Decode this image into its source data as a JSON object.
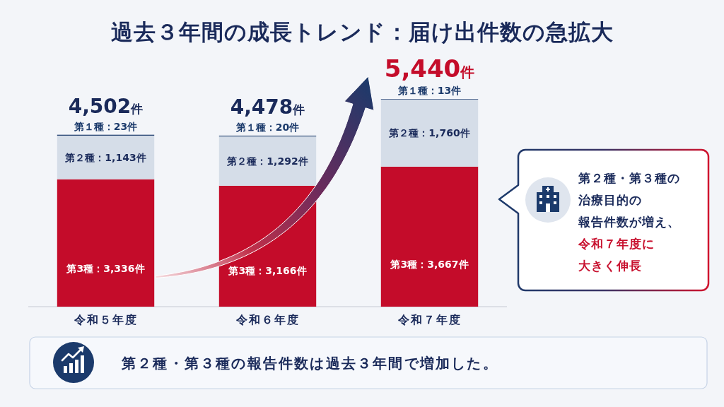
{
  "chart_data": {
    "type": "bar",
    "title": "過去３年間の成長トレンド：届け出件数の急拡大",
    "categories": [
      "令和５年度",
      "令和６年度",
      "令和７年度"
    ],
    "stacked": true,
    "series": [
      {
        "color": "#c40c2a",
        "values": [
          3336,
          3166,
          3667
        ],
        "value_labels": [
          "第3種：3,336件",
          "第3種：3,166件",
          "第3種：3,667件"
        ]
      },
      {
        "color": "#d5dde8",
        "values": [
          1143,
          1292,
          1760
        ],
        "value_labels": [
          "第２種：1,143件",
          "第２種：1,292件",
          "第２種：1,760件"
        ]
      },
      {
        "color": "#1b3a6b",
        "values": [
          23,
          20,
          13
        ],
        "value_labels": [
          "第１種：23件",
          "第１種：20件",
          "第１種：13件"
        ]
      }
    ],
    "totals": [
      "4,502件",
      "4,478件",
      "5,440件"
    ],
    "annotations": [
      "第２種・第３種の",
      "治療目的の",
      "報告件数が増え、",
      "令和７年度に",
      "大きく伸長",
      "第２種・第３種の報告件数は過去３年間で増加した。"
    ]
  }
}
